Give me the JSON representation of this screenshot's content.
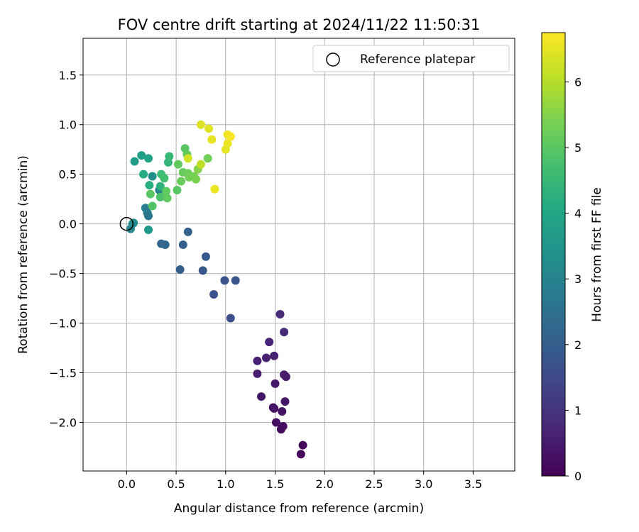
{
  "chart_data": {
    "type": "scatter",
    "title": "FOV centre drift starting at 2024/11/22 11:50:31",
    "xlabel": "Angular distance from reference (arcmin)",
    "ylabel": "Rotation from reference (arcmin)",
    "xlim": [
      -0.44,
      3.92
    ],
    "ylim": [
      -2.49,
      1.87
    ],
    "xticks": [
      0.0,
      0.5,
      1.0,
      1.5,
      2.0,
      2.5,
      3.0,
      3.5
    ],
    "xtick_labels": [
      "0.0",
      "0.5",
      "1.0",
      "1.5",
      "2.0",
      "2.5",
      "3.0",
      "3.5"
    ],
    "yticks": [
      -2.0,
      -1.5,
      -1.0,
      -0.5,
      0.0,
      0.5,
      1.0,
      1.5
    ],
    "ytick_labels": [
      "−2.0",
      "−1.5",
      "−1.0",
      "−0.5",
      "0.0",
      "0.5",
      "1.0",
      "1.5"
    ],
    "grid": true,
    "legend": {
      "placement": "top-right",
      "entries": [
        "Reference platepar"
      ]
    },
    "reference_point": {
      "x": 0.0,
      "y": 0.0
    },
    "colorbar": {
      "label": "Hours from first FF file",
      "colormap": "viridis",
      "range": [
        0,
        6.75
      ],
      "ticks": [
        0,
        1,
        2,
        3,
        4,
        5,
        6
      ],
      "tick_labels": [
        "0",
        "1",
        "2",
        "3",
        "4",
        "5",
        "6"
      ]
    },
    "points": [
      {
        "x": 1.76,
        "y": -2.32,
        "c": 0.1
      },
      {
        "x": 1.78,
        "y": -2.23,
        "c": 0.15
      },
      {
        "x": 1.56,
        "y": -2.07,
        "c": 0.2
      },
      {
        "x": 1.58,
        "y": -2.04,
        "c": 0.22
      },
      {
        "x": 1.51,
        "y": -2.0,
        "c": 0.25
      },
      {
        "x": 1.48,
        "y": -1.85,
        "c": 0.3
      },
      {
        "x": 1.49,
        "y": -1.86,
        "c": 0.32
      },
      {
        "x": 1.57,
        "y": -1.89,
        "c": 0.35
      },
      {
        "x": 1.6,
        "y": -1.79,
        "c": 0.38
      },
      {
        "x": 1.36,
        "y": -1.74,
        "c": 0.4
      },
      {
        "x": 1.5,
        "y": -1.61,
        "c": 0.45
      },
      {
        "x": 1.59,
        "y": -1.52,
        "c": 0.5
      },
      {
        "x": 1.61,
        "y": -1.54,
        "c": 0.52
      },
      {
        "x": 1.32,
        "y": -1.51,
        "c": 0.55
      },
      {
        "x": 1.32,
        "y": -1.38,
        "c": 0.6
      },
      {
        "x": 1.41,
        "y": -1.35,
        "c": 0.62
      },
      {
        "x": 1.49,
        "y": -1.33,
        "c": 0.65
      },
      {
        "x": 1.44,
        "y": -1.19,
        "c": 0.7
      },
      {
        "x": 1.59,
        "y": -1.09,
        "c": 0.75
      },
      {
        "x": 1.55,
        "y": -0.91,
        "c": 0.8
      },
      {
        "x": 1.05,
        "y": -0.95,
        "c": 1.6
      },
      {
        "x": 0.88,
        "y": -0.71,
        "c": 1.7
      },
      {
        "x": 0.99,
        "y": -0.57,
        "c": 1.75
      },
      {
        "x": 1.1,
        "y": -0.57,
        "c": 1.8
      },
      {
        "x": 0.77,
        "y": -0.47,
        "c": 1.85
      },
      {
        "x": 0.8,
        "y": -0.33,
        "c": 1.9
      },
      {
        "x": 0.54,
        "y": -0.46,
        "c": 2.0
      },
      {
        "x": 0.57,
        "y": -0.21,
        "c": 2.05
      },
      {
        "x": 0.62,
        "y": -0.08,
        "c": 2.1
      },
      {
        "x": 0.35,
        "y": -0.2,
        "c": 2.2
      },
      {
        "x": 0.39,
        "y": -0.21,
        "c": 2.25
      },
      {
        "x": 0.04,
        "y": -0.05,
        "c": 3.1
      },
      {
        "x": 0.06,
        "y": 0.0,
        "c": 3.15
      },
      {
        "x": 0.07,
        "y": 0.01,
        "c": 3.2
      },
      {
        "x": 0.22,
        "y": 0.08,
        "c": 2.6
      },
      {
        "x": 0.21,
        "y": 0.11,
        "c": 2.7
      },
      {
        "x": 0.19,
        "y": 0.16,
        "c": 2.8
      },
      {
        "x": 0.22,
        "y": -0.06,
        "c": 3.6
      },
      {
        "x": 0.33,
        "y": 0.34,
        "c": 3.0
      },
      {
        "x": 0.26,
        "y": 0.48,
        "c": 3.3
      },
      {
        "x": 0.08,
        "y": 0.63,
        "c": 3.7
      },
      {
        "x": 0.15,
        "y": 0.69,
        "c": 3.8
      },
      {
        "x": 0.22,
        "y": 0.66,
        "c": 3.9
      },
      {
        "x": 0.17,
        "y": 0.5,
        "c": 4.1
      },
      {
        "x": 0.23,
        "y": 0.39,
        "c": 4.2
      },
      {
        "x": 0.34,
        "y": 0.38,
        "c": 4.3
      },
      {
        "x": 0.42,
        "y": 0.62,
        "c": 4.4
      },
      {
        "x": 0.43,
        "y": 0.68,
        "c": 4.5
      },
      {
        "x": 0.35,
        "y": 0.5,
        "c": 4.6
      },
      {
        "x": 0.38,
        "y": 0.46,
        "c": 4.7
      },
      {
        "x": 0.34,
        "y": 0.27,
        "c": 4.8
      },
      {
        "x": 0.26,
        "y": 0.18,
        "c": 4.9
      },
      {
        "x": 0.24,
        "y": 0.3,
        "c": 5.0
      },
      {
        "x": 0.4,
        "y": 0.33,
        "c": 5.05
      },
      {
        "x": 0.41,
        "y": 0.26,
        "c": 5.1
      },
      {
        "x": 0.51,
        "y": 0.34,
        "c": 5.0
      },
      {
        "x": 0.52,
        "y": 0.6,
        "c": 5.1
      },
      {
        "x": 0.55,
        "y": 0.43,
        "c": 5.2
      },
      {
        "x": 0.57,
        "y": 0.52,
        "c": 5.15
      },
      {
        "x": 0.59,
        "y": 0.76,
        "c": 5.0
      },
      {
        "x": 0.61,
        "y": 0.7,
        "c": 5.1
      },
      {
        "x": 0.62,
        "y": 0.51,
        "c": 5.25
      },
      {
        "x": 0.63,
        "y": 0.47,
        "c": 5.3
      },
      {
        "x": 0.68,
        "y": 0.48,
        "c": 5.35
      },
      {
        "x": 0.7,
        "y": 0.45,
        "c": 5.4
      },
      {
        "x": 0.72,
        "y": 0.55,
        "c": 5.5
      },
      {
        "x": 0.82,
        "y": 0.66,
        "c": 5.3
      },
      {
        "x": 0.75,
        "y": 0.6,
        "c": 6.1
      },
      {
        "x": 0.62,
        "y": 0.66,
        "c": 6.3
      },
      {
        "x": 0.75,
        "y": 1.0,
        "c": 6.4
      },
      {
        "x": 0.83,
        "y": 0.96,
        "c": 6.45
      },
      {
        "x": 0.86,
        "y": 0.85,
        "c": 6.5
      },
      {
        "x": 0.89,
        "y": 0.35,
        "c": 6.55
      },
      {
        "x": 1.0,
        "y": 0.75,
        "c": 6.5
      },
      {
        "x": 1.02,
        "y": 0.81,
        "c": 6.55
      },
      {
        "x": 1.02,
        "y": 0.9,
        "c": 6.6
      },
      {
        "x": 1.05,
        "y": 0.88,
        "c": 6.7
      }
    ]
  }
}
